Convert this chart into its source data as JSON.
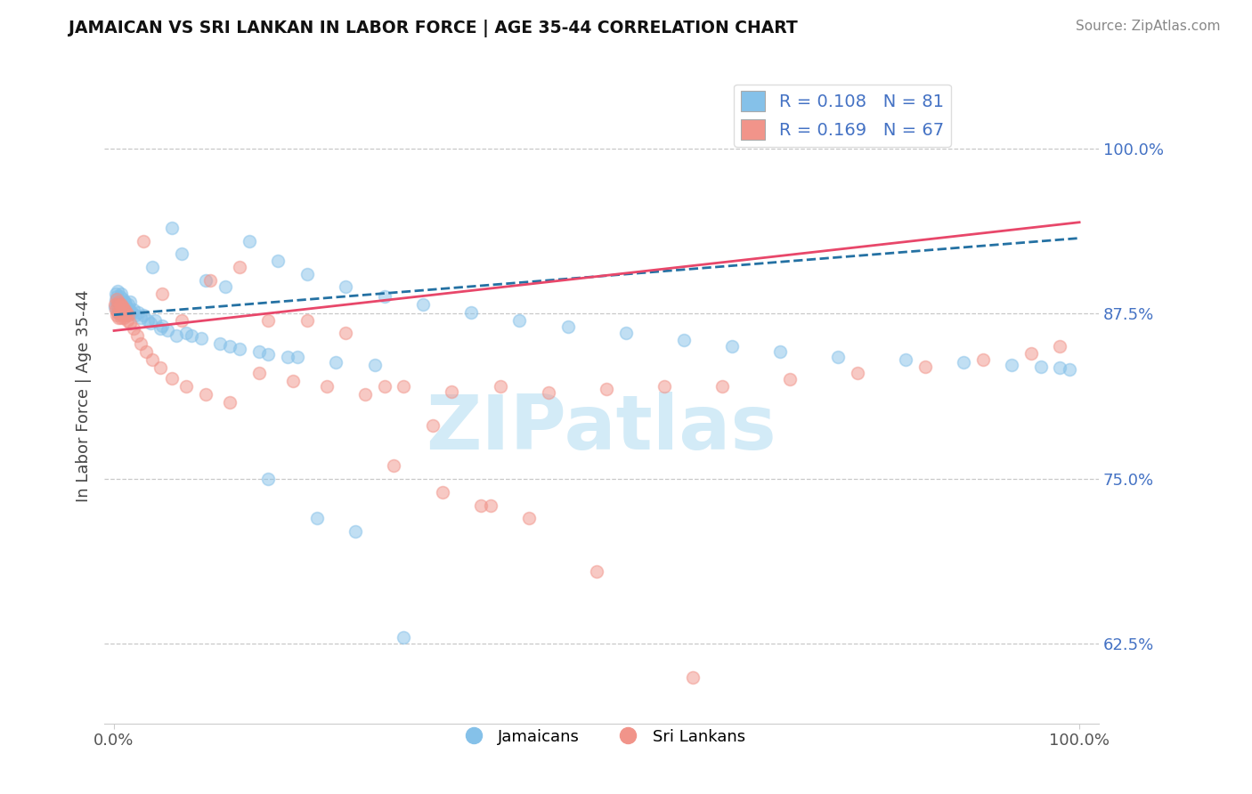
{
  "title": "JAMAICAN VS SRI LANKAN IN LABOR FORCE | AGE 35-44 CORRELATION CHART",
  "source": "Source: ZipAtlas.com",
  "ylabel": "In Labor Force | Age 35-44",
  "right_yticks": [
    0.625,
    0.75,
    0.875,
    1.0
  ],
  "right_yticklabels": [
    "62.5%",
    "75.0%",
    "87.5%",
    "100.0%"
  ],
  "xlim": [
    -0.01,
    1.02
  ],
  "ylim": [
    0.565,
    1.06
  ],
  "legend_R1": "R = 0.108",
  "legend_N1": "N = 81",
  "legend_R2": "R = 0.169",
  "legend_N2": "N = 67",
  "blue_color": "#85C1E9",
  "pink_color": "#F1948A",
  "trend_blue_color": "#2471A3",
  "trend_pink_color": "#E8476A",
  "watermark_color": "#C8E6F5",
  "watermark_text": "ZIPatlas",
  "jamaican_x": [
    0.001,
    0.002,
    0.002,
    0.003,
    0.003,
    0.004,
    0.004,
    0.005,
    0.005,
    0.006,
    0.006,
    0.007,
    0.007,
    0.008,
    0.008,
    0.009,
    0.009,
    0.01,
    0.01,
    0.011,
    0.011,
    0.012,
    0.013,
    0.014,
    0.015,
    0.016,
    0.017,
    0.018,
    0.02,
    0.022,
    0.025,
    0.028,
    0.03,
    0.035,
    0.038,
    0.042,
    0.048,
    0.055,
    0.065,
    0.075,
    0.09,
    0.11,
    0.13,
    0.16,
    0.19,
    0.23,
    0.27,
    0.05,
    0.08,
    0.12,
    0.15,
    0.18,
    0.06,
    0.04,
    0.07,
    0.095,
    0.115,
    0.14,
    0.17,
    0.2,
    0.24,
    0.28,
    0.32,
    0.37,
    0.42,
    0.47,
    0.53,
    0.59,
    0.64,
    0.69,
    0.75,
    0.82,
    0.88,
    0.93,
    0.96,
    0.98,
    0.99,
    0.16,
    0.21,
    0.25,
    0.3
  ],
  "jamaican_y": [
    0.88,
    0.885,
    0.89,
    0.888,
    0.882,
    0.892,
    0.878,
    0.886,
    0.875,
    0.888,
    0.882,
    0.89,
    0.876,
    0.884,
    0.88,
    0.886,
    0.878,
    0.884,
    0.876,
    0.884,
    0.878,
    0.882,
    0.88,
    0.876,
    0.882,
    0.878,
    0.884,
    0.876,
    0.878,
    0.874,
    0.876,
    0.872,
    0.874,
    0.87,
    0.868,
    0.87,
    0.864,
    0.862,
    0.858,
    0.86,
    0.856,
    0.852,
    0.848,
    0.844,
    0.842,
    0.838,
    0.836,
    0.866,
    0.858,
    0.85,
    0.846,
    0.842,
    0.94,
    0.91,
    0.92,
    0.9,
    0.895,
    0.93,
    0.915,
    0.905,
    0.895,
    0.888,
    0.882,
    0.876,
    0.87,
    0.865,
    0.86,
    0.855,
    0.85,
    0.846,
    0.842,
    0.84,
    0.838,
    0.836,
    0.835,
    0.834,
    0.833,
    0.75,
    0.72,
    0.71,
    0.63
  ],
  "srilankan_x": [
    0.001,
    0.002,
    0.003,
    0.003,
    0.004,
    0.004,
    0.005,
    0.005,
    0.006,
    0.006,
    0.007,
    0.007,
    0.008,
    0.008,
    0.009,
    0.01,
    0.01,
    0.011,
    0.012,
    0.013,
    0.014,
    0.015,
    0.017,
    0.02,
    0.024,
    0.028,
    0.033,
    0.04,
    0.048,
    0.06,
    0.075,
    0.095,
    0.12,
    0.15,
    0.185,
    0.22,
    0.26,
    0.3,
    0.35,
    0.4,
    0.45,
    0.51,
    0.57,
    0.63,
    0.7,
    0.77,
    0.84,
    0.9,
    0.95,
    0.98,
    0.29,
    0.34,
    0.39,
    0.03,
    0.05,
    0.07,
    0.1,
    0.13,
    0.16,
    0.2,
    0.24,
    0.28,
    0.33,
    0.38,
    0.43,
    0.5,
    0.6
  ],
  "srilankan_y": [
    0.882,
    0.878,
    0.886,
    0.874,
    0.882,
    0.876,
    0.884,
    0.872,
    0.882,
    0.876,
    0.882,
    0.872,
    0.88,
    0.874,
    0.88,
    0.878,
    0.872,
    0.878,
    0.874,
    0.876,
    0.87,
    0.874,
    0.868,
    0.864,
    0.858,
    0.852,
    0.846,
    0.84,
    0.834,
    0.826,
    0.82,
    0.814,
    0.808,
    0.83,
    0.824,
    0.82,
    0.814,
    0.82,
    0.816,
    0.82,
    0.815,
    0.818,
    0.82,
    0.82,
    0.825,
    0.83,
    0.835,
    0.84,
    0.845,
    0.85,
    0.76,
    0.74,
    0.73,
    0.93,
    0.89,
    0.87,
    0.9,
    0.91,
    0.87,
    0.87,
    0.86,
    0.82,
    0.79,
    0.73,
    0.72,
    0.68,
    0.6
  ],
  "trend_j_intercept": 0.874,
  "trend_j_slope": 0.058,
  "trend_s_intercept": 0.862,
  "trend_s_slope": 0.082
}
